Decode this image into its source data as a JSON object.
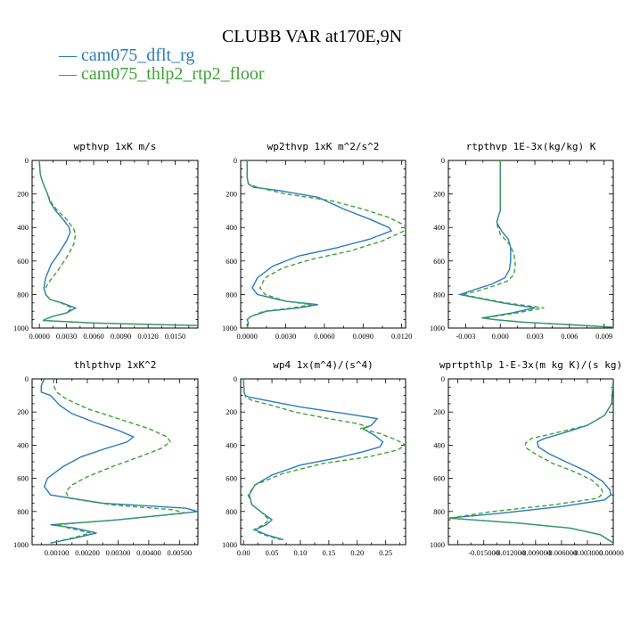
{
  "figure": {
    "title": "CLUBB VAR at170E,9N",
    "legend": [
      {
        "label": "cam075_dflt_rg",
        "color": "#2b7bba"
      },
      {
        "label": "cam075_thlp2_rtp2_floor",
        "color": "#3ea337"
      }
    ]
  },
  "chart_data": [
    {
      "type": "line",
      "title": "wpthvp   1xK m/s",
      "xlim": [
        -0.0008,
        0.0175
      ],
      "xticks": [
        0.0,
        0.003,
        0.006,
        0.009,
        0.012,
        0.015
      ],
      "xtick_labels": [
        "0.0000",
        "0.0030",
        "0.0060",
        "0.0090",
        "0.0120",
        "0.0150"
      ],
      "ylim": [
        1000,
        0
      ],
      "yticks": [
        0,
        200,
        400,
        600,
        800,
        1000
      ],
      "series": [
        {
          "color": "#2b7bba",
          "dash": "",
          "x": [
            0.0,
            0.0001,
            0.0003,
            0.0006,
            0.0009,
            0.0012,
            0.0018,
            0.0026,
            0.0033,
            0.0034,
            0.003,
            0.0022,
            0.0013,
            0.0007,
            0.0005,
            0.0007,
            0.0012,
            0.0025,
            0.004,
            0.003,
            0.0015,
            0.0008,
            0.0004,
            0.006,
            0.0175
          ],
          "y": [
            0,
            80,
            120,
            160,
            200,
            250,
            300,
            350,
            400,
            430,
            480,
            550,
            620,
            700,
            760,
            800,
            830,
            850,
            880,
            910,
            930,
            945,
            955,
            970,
            985
          ]
        },
        {
          "color": "#3ea337",
          "dash": "5,3",
          "x": [
            0.0,
            0.0001,
            0.0003,
            0.0006,
            0.0009,
            0.0013,
            0.002,
            0.003,
            0.0038,
            0.004,
            0.0038,
            0.003,
            0.002,
            0.001,
            0.0006,
            0.0007,
            0.0012,
            0.0024,
            0.0036,
            0.003,
            0.0015,
            0.0008,
            0.0004,
            0.006,
            0.0175
          ],
          "y": [
            0,
            80,
            120,
            160,
            200,
            250,
            300,
            350,
            410,
            440,
            500,
            580,
            660,
            730,
            770,
            800,
            830,
            850,
            880,
            910,
            930,
            945,
            955,
            970,
            985
          ]
        }
      ]
    },
    {
      "type": "line",
      "title": "wp2thvp   1xK m^2/s^2",
      "xlim": [
        -0.0005,
        0.0123
      ],
      "xticks": [
        0.0,
        0.003,
        0.006,
        0.009,
        0.012
      ],
      "xtick_labels": [
        "0.0000",
        "0.0030",
        "0.0060",
        "0.0090",
        "0.0120"
      ],
      "ylim": [
        1000,
        0
      ],
      "yticks": [
        0,
        200,
        400,
        600,
        800,
        1000
      ],
      "series": [
        {
          "color": "#2b7bba",
          "dash": "",
          "x": [
            0.0,
            0.0,
            0.0001,
            0.0005,
            0.0025,
            0.0055,
            0.0075,
            0.0095,
            0.011,
            0.0112,
            0.0095,
            0.007,
            0.004,
            0.002,
            0.0008,
            0.0004,
            0.0008,
            0.003,
            0.0055,
            0.004,
            0.0015,
            0.0003,
            0.0,
            0.0001,
            0.0
          ],
          "y": [
            0,
            100,
            140,
            160,
            180,
            220,
            290,
            350,
            400,
            420,
            470,
            520,
            570,
            630,
            700,
            760,
            800,
            840,
            860,
            880,
            900,
            930,
            950,
            970,
            1000
          ]
        },
        {
          "color": "#3ea337",
          "dash": "5,3",
          "x": [
            0.0,
            0.0,
            0.0001,
            0.0008,
            0.003,
            0.0065,
            0.009,
            0.011,
            0.0123,
            0.0122,
            0.0105,
            0.008,
            0.005,
            0.0028,
            0.0014,
            0.001,
            0.0014,
            0.003,
            0.005,
            0.0035,
            0.0013,
            0.0003,
            0.0,
            0.0001,
            0.0
          ],
          "y": [
            0,
            100,
            140,
            160,
            200,
            240,
            290,
            340,
            390,
            420,
            480,
            540,
            590,
            640,
            700,
            760,
            800,
            840,
            860,
            880,
            900,
            930,
            950,
            970,
            1000
          ]
        }
      ]
    },
    {
      "type": "line",
      "title": "rtpthvp   1E-3x(kg/kg) K",
      "xlim": [
        -0.0045,
        0.0098
      ],
      "xticks": [
        -0.003,
        0.0,
        0.003,
        0.006,
        0.009
      ],
      "xtick_labels": [
        "-0.003",
        "0.000",
        "0.003",
        "0.006",
        "0.009"
      ],
      "ylim": [
        1000,
        0
      ],
      "yticks": [
        0,
        200,
        400,
        600,
        800,
        1000
      ],
      "series": [
        {
          "color": "#2b7bba",
          "dash": "",
          "x": [
            0.0,
            0.0,
            0.0,
            -0.0002,
            -0.0003,
            0.0001,
            0.0007,
            0.0009,
            0.0009,
            0.0008,
            0.0004,
            -0.0008,
            -0.0022,
            -0.0035,
            -0.002,
            0.0002,
            0.003,
            0.001,
            -0.0016,
            -0.0005,
            0.002,
            0.006,
            0.0098
          ],
          "y": [
            0,
            200,
            300,
            340,
            370,
            420,
            470,
            520,
            600,
            650,
            700,
            740,
            770,
            800,
            820,
            850,
            880,
            910,
            940,
            950,
            965,
            980,
            995
          ]
        },
        {
          "color": "#3ea337",
          "dash": "5,3",
          "x": [
            0.0,
            0.0,
            0.0,
            -0.0002,
            -0.0003,
            0.0,
            0.0008,
            0.0012,
            0.0013,
            0.0012,
            0.0006,
            -0.0006,
            -0.002,
            -0.0033,
            -0.0018,
            0.0005,
            0.0038,
            0.0014,
            -0.0014,
            -0.0004,
            0.002,
            0.006,
            0.0098
          ],
          "y": [
            0,
            200,
            300,
            340,
            380,
            440,
            500,
            560,
            620,
            680,
            720,
            750,
            780,
            800,
            820,
            850,
            880,
            910,
            940,
            950,
            965,
            980,
            995
          ]
        }
      ]
    },
    {
      "type": "line",
      "title": "thlpthvp   1xK^2",
      "xlim": [
        0.0002,
        0.0056
      ],
      "xticks": [
        0.001,
        0.002,
        0.003,
        0.004,
        0.005
      ],
      "xtick_labels": [
        "0.00100",
        "0.00200",
        "0.00300",
        "0.00400",
        "0.00500"
      ],
      "ylim": [
        1000,
        0
      ],
      "yticks": [
        0,
        200,
        400,
        600,
        800,
        1000
      ],
      "series": [
        {
          "color": "#2b7bba",
          "dash": "",
          "x": [
            0.0006,
            0.0005,
            0.0005,
            0.0008,
            0.0009,
            0.0011,
            0.0015,
            0.0022,
            0.003,
            0.0035,
            0.0033,
            0.0026,
            0.0018,
            0.0012,
            0.0007,
            0.0006,
            0.0008,
            0.0025,
            0.0052,
            0.0056,
            0.003,
            0.0008,
            0.0016,
            0.0023,
            0.0016,
            0.0008
          ],
          "y": [
            0,
            40,
            80,
            100,
            120,
            160,
            210,
            260,
            310,
            350,
            380,
            420,
            470,
            530,
            600,
            650,
            700,
            750,
            780,
            800,
            850,
            880,
            900,
            930,
            960,
            990
          ]
        },
        {
          "color": "#3ea337",
          "dash": "5,3",
          "x": [
            0.0009,
            0.0009,
            0.001,
            0.0013,
            0.002,
            0.003,
            0.004,
            0.0046,
            0.0047,
            0.0044,
            0.0037,
            0.0028,
            0.002,
            0.0015,
            0.0013,
            0.0014,
            0.0028,
            0.0048,
            0.0052,
            0.003,
            0.001,
            0.0014,
            0.0021,
            0.0015,
            0.0008
          ],
          "y": [
            0,
            40,
            80,
            120,
            180,
            240,
            300,
            350,
            380,
            420,
            470,
            530,
            590,
            640,
            680,
            720,
            760,
            790,
            810,
            850,
            880,
            900,
            930,
            960,
            990
          ]
        }
      ]
    },
    {
      "type": "line",
      "title": "wp4   1x(m^4)/(s^4)",
      "xlim": [
        -0.005,
        0.285
      ],
      "xticks": [
        0.0,
        0.05,
        0.1,
        0.15,
        0.2,
        0.25
      ],
      "xtick_labels": [
        "0.00",
        "0.05",
        "0.10",
        "0.15",
        "0.20",
        "0.25"
      ],
      "ylim": [
        1000,
        0
      ],
      "yticks": [
        0,
        200,
        400,
        600,
        800,
        1000
      ],
      "series": [
        {
          "color": "#2b7bba",
          "dash": "",
          "x": [
            0.0,
            0.001,
            0.003,
            0.01,
            0.04,
            0.1,
            0.18,
            0.235,
            0.225,
            0.21,
            0.23,
            0.245,
            0.24,
            0.21,
            0.16,
            0.1,
            0.05,
            0.02,
            0.01,
            0.015,
            0.03,
            0.05,
            0.04,
            0.02,
            0.04,
            0.07
          ],
          "y": [
            0,
            80,
            100,
            110,
            130,
            170,
            210,
            240,
            280,
            300,
            340,
            380,
            410,
            440,
            480,
            520,
            580,
            640,
            700,
            760,
            800,
            850,
            880,
            910,
            940,
            970
          ]
        },
        {
          "color": "#3ea337",
          "dash": "5,3",
          "x": [
            0.0,
            0.001,
            0.004,
            0.015,
            0.05,
            0.09,
            0.15,
            0.2,
            0.22,
            0.205,
            0.24,
            0.27,
            0.285,
            0.27,
            0.22,
            0.14,
            0.07,
            0.02,
            0.008,
            0.015,
            0.03,
            0.045,
            0.035,
            0.018,
            0.035,
            0.065
          ],
          "y": [
            0,
            80,
            110,
            130,
            160,
            200,
            240,
            270,
            290,
            300,
            330,
            370,
            400,
            430,
            470,
            510,
            570,
            640,
            700,
            760,
            800,
            850,
            880,
            910,
            940,
            970
          ]
        }
      ]
    },
    {
      "type": "line",
      "title": "wprtpthlp   1-E-3x(m kg K)/(s kg)",
      "xlim": [
        -0.0191,
        0.0
      ],
      "xticks": [
        -0.015,
        -0.012,
        -0.009,
        -0.006,
        -0.003,
        0.0
      ],
      "xtick_labels": [
        "-0.015000",
        "-0.012000",
        "-0.009000",
        "-0.006000",
        "-0.003000",
        "0.000000"
      ],
      "ylim": [
        1000,
        0
      ],
      "yticks": [
        0,
        200,
        400,
        600,
        800,
        1000
      ],
      "series": [
        {
          "color": "#2b7bba",
          "dash": "",
          "x": [
            0.0,
            -0.0002,
            -0.001,
            -0.003,
            -0.006,
            -0.008,
            -0.0088,
            -0.0087,
            -0.0075,
            -0.0055,
            -0.003,
            -0.0012,
            -0.0004,
            -0.0003,
            -0.001,
            -0.006,
            -0.013,
            -0.019,
            -0.011,
            -0.005,
            -0.0015,
            0.0
          ],
          "y": [
            0,
            150,
            220,
            280,
            330,
            360,
            380,
            410,
            450,
            500,
            560,
            620,
            670,
            700,
            730,
            770,
            810,
            840,
            870,
            900,
            940,
            990
          ]
        },
        {
          "color": "#3ea337",
          "dash": "5,3",
          "x": [
            0.0,
            -0.0002,
            -0.001,
            -0.003,
            -0.007,
            -0.0095,
            -0.0102,
            -0.01,
            -0.0088,
            -0.007,
            -0.0045,
            -0.0025,
            -0.0014,
            -0.0012,
            -0.0018,
            -0.007,
            -0.014,
            -0.019,
            -0.011,
            -0.005,
            -0.0015,
            0.0
          ],
          "y": [
            0,
            150,
            220,
            280,
            330,
            360,
            390,
            420,
            460,
            510,
            560,
            610,
            660,
            690,
            720,
            760,
            800,
            840,
            870,
            900,
            940,
            990
          ]
        }
      ]
    }
  ]
}
